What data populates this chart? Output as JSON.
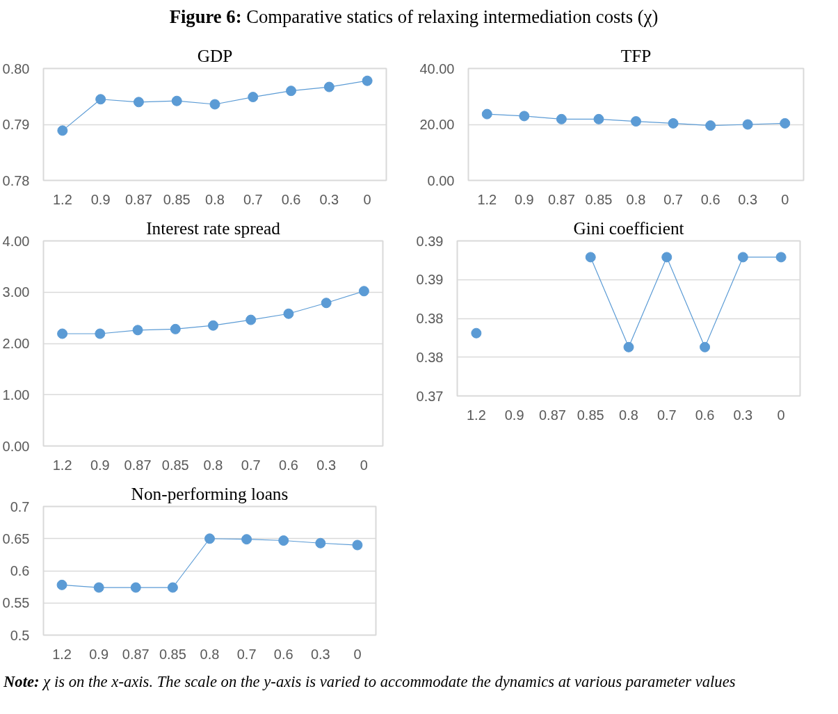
{
  "chart_data": [
    {
      "type": "line",
      "title": "GDP",
      "annotations": [
        "Figure 6: Comparative statics of relaxing intermediation costs (χ)"
      ],
      "categories": [
        "1.2",
        "0.9",
        "0.87",
        "0.85",
        "0.8",
        "0.7",
        "0.6",
        "0.3",
        "0"
      ],
      "series": [
        {
          "color": "#5b9bd5",
          "values": [
            0.7889,
            0.7945,
            0.794,
            0.7942,
            0.7936,
            0.7949,
            0.796,
            0.7967,
            0.7978
          ]
        }
      ],
      "ylim": [
        0.78,
        0.8
      ],
      "yticks": [
        {
          "value": 0.78,
          "label": "0.78"
        },
        {
          "value": 0.79,
          "label": "0.79"
        },
        {
          "value": 0.8,
          "label": "0.80"
        }
      ],
      "grid": "y",
      "marker": "circle",
      "line_style": "solid"
    },
    {
      "type": "line",
      "title": "TFP",
      "categories": [
        "1.2",
        "0.9",
        "0.87",
        "0.85",
        "0.8",
        "0.7",
        "0.6",
        "0.3",
        "0"
      ],
      "series": [
        {
          "color": "#5b9bd5",
          "values": [
            23.7,
            23.0,
            21.9,
            21.9,
            21.1,
            20.4,
            19.6,
            20.0,
            20.4
          ]
        }
      ],
      "ylim": [
        0,
        40
      ],
      "yticks": [
        {
          "value": 0,
          "label": "0.00"
        },
        {
          "value": 20,
          "label": "20.00"
        },
        {
          "value": 40,
          "label": "40.00"
        }
      ],
      "grid": "y",
      "marker": "circle",
      "line_style": "solid"
    },
    {
      "type": "line",
      "title": "Interest rate spread",
      "categories": [
        "1.2",
        "0.9",
        "0.87",
        "0.85",
        "0.8",
        "0.7",
        "0.6",
        "0.3",
        "0"
      ],
      "series": [
        {
          "color": "#5b9bd5",
          "values": [
            2.19,
            2.19,
            2.26,
            2.28,
            2.35,
            2.46,
            2.58,
            2.79,
            3.02
          ]
        }
      ],
      "ylim": [
        0,
        4
      ],
      "yticks": [
        {
          "value": 0,
          "label": "0.00"
        },
        {
          "value": 1,
          "label": "1.00"
        },
        {
          "value": 2,
          "label": "2.00"
        },
        {
          "value": 3,
          "label": "3.00"
        },
        {
          "value": 4,
          "label": "4.00"
        }
      ],
      "grid": "y",
      "marker": "circle",
      "line_style": "solid"
    },
    {
      "type": "line",
      "title": "Gini coefficient",
      "categories": [
        "1.2",
        "0.9",
        "0.87",
        "0.85",
        "0.8",
        "0.7",
        "0.6",
        "0.3",
        "0"
      ],
      "series": [
        {
          "color": "#5b9bd5",
          "values": [
            0.3781,
            null,
            null,
            0.3879,
            0.3763,
            0.3879,
            0.3763,
            0.3879,
            0.3879
          ]
        }
      ],
      "ylim": [
        0.37,
        0.39
      ],
      "yticks": [
        {
          "value": 0.37,
          "label": "0.37"
        },
        {
          "value": 0.375,
          "label": "0.38"
        },
        {
          "value": 0.38,
          "label": "0.38"
        },
        {
          "value": 0.385,
          "label": "0.39"
        },
        {
          "value": 0.39,
          "label": "0.39"
        }
      ],
      "grid": "y",
      "marker": "circle",
      "line_style": "solid"
    },
    {
      "type": "line",
      "title": "Non-performing loans",
      "annotations": [
        "Note:  χ is on the x-axis. The scale on the y-axis is varied to accommodate the dynamics at various parameter values"
      ],
      "categories": [
        "1.2",
        "0.9",
        "0.87",
        "0.85",
        "0.8",
        "0.7",
        "0.6",
        "0.3",
        "0"
      ],
      "series": [
        {
          "color": "#5b9bd5",
          "values": [
            0.578,
            0.574,
            0.574,
            0.574,
            0.65,
            0.649,
            0.647,
            0.643,
            0.64
          ]
        }
      ],
      "ylim": [
        0.5,
        0.7
      ],
      "yticks": [
        0.5,
        0.55,
        0.6,
        0.65,
        0.7
      ],
      "grid": "y",
      "marker": "circle",
      "line_style": "solid"
    }
  ]
}
